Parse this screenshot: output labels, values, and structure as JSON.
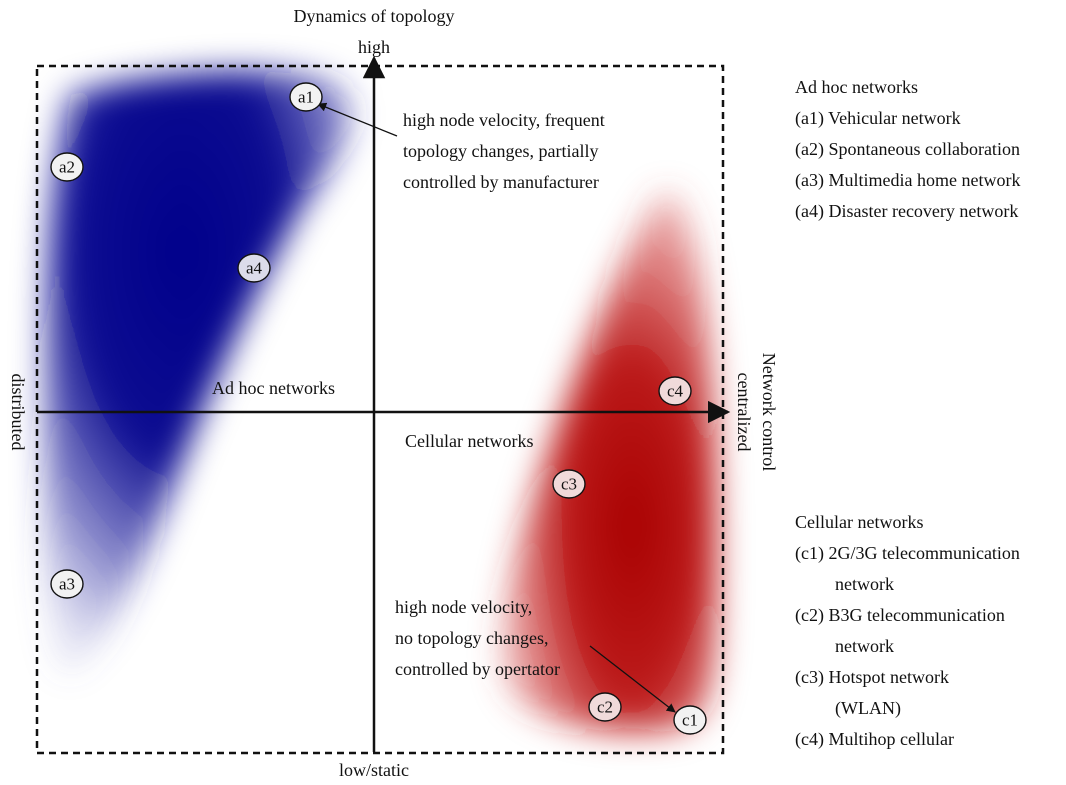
{
  "axes": {
    "y_title": "Dynamics of topology",
    "y_high": "high",
    "y_low": "low/static",
    "x_title": "Network control",
    "x_right": "centralized",
    "x_left": "distributed"
  },
  "regions": {
    "adhoc_label": "Ad hoc networks",
    "cellular_label": "Cellular networks",
    "adhoc_color": "#00008b",
    "cellular_color": "#b30000"
  },
  "nodes": [
    {
      "id": "a1",
      "label": "a1"
    },
    {
      "id": "a2",
      "label": "a2"
    },
    {
      "id": "a3",
      "label": "a3"
    },
    {
      "id": "a4",
      "label": "a4"
    },
    {
      "id": "c1",
      "label": "c1"
    },
    {
      "id": "c2",
      "label": "c2"
    },
    {
      "id": "c3",
      "label": "c3"
    },
    {
      "id": "c4",
      "label": "c4"
    }
  ],
  "annotations": {
    "top": [
      "high node velocity, frequent",
      "topology changes, partially",
      "controlled by manufacturer"
    ],
    "bottom": [
      "high node velocity,",
      "no topology changes,",
      "controlled by opertator"
    ]
  },
  "legend": {
    "adhoc": {
      "title": "Ad hoc networks",
      "items": [
        [
          "(a1) Vehicular network"
        ],
        [
          "(a2) Spontaneous collaboration"
        ],
        [
          "(a3) Multimedia home network"
        ],
        [
          "(a4) Disaster recovery network"
        ]
      ]
    },
    "cellular": {
      "title": "Cellular networks",
      "items": [
        [
          "(c1) 2G/3G telecommunication",
          "network"
        ],
        [
          "(c2) B3G telecommunication",
          "network"
        ],
        [
          "(c3) Hotspot network",
          "(WLAN)"
        ],
        [
          "(c4) Multihop cellular"
        ]
      ]
    }
  }
}
